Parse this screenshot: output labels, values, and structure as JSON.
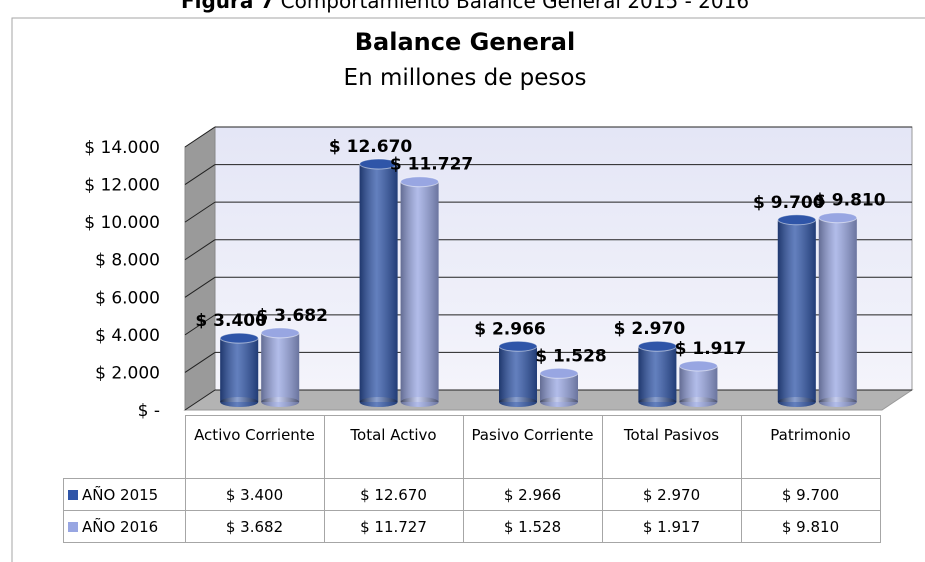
{
  "caption": {
    "label": "Figura 7",
    "text": "Comportamiento Balance General 2015 - 2016"
  },
  "chart_data": {
    "type": "bar",
    "title": "Balance General",
    "subtitle": "En millones de pesos",
    "categories": [
      "Activo Corriente",
      "Total Activo",
      "Pasivo Corriente",
      "Total Pasivos",
      "Patrimonio"
    ],
    "series": [
      {
        "name": "AÑO 2015",
        "color": "#2f55a8",
        "values": [
          3400,
          12670,
          2966,
          2970,
          9700
        ],
        "value_labels": [
          "$ 3.400",
          "$ 12.670",
          "$ 2.966",
          "$ 2.970",
          "$ 9.700"
        ]
      },
      {
        "name": "AÑO 2016",
        "color": "#98a6e2",
        "values": [
          3682,
          11727,
          1528,
          1917,
          9810
        ],
        "value_labels": [
          "$ 3.682",
          "$ 11.727",
          "$ 1.528",
          "$ 1.917",
          "$ 9.810"
        ]
      }
    ],
    "ylim": [
      0,
      14000
    ],
    "yticks": [
      {
        "value": 0,
        "label": "$ -"
      },
      {
        "value": 2000,
        "label": "$ 2.000"
      },
      {
        "value": 4000,
        "label": "$ 4.000"
      },
      {
        "value": 6000,
        "label": "$ 6.000"
      },
      {
        "value": 8000,
        "label": "$ 8.000"
      },
      {
        "value": 10000,
        "label": "$ 10.000"
      },
      {
        "value": 12000,
        "label": "$ 12.000"
      },
      {
        "value": 14000,
        "label": "$ 14.000"
      }
    ],
    "grid": true
  }
}
